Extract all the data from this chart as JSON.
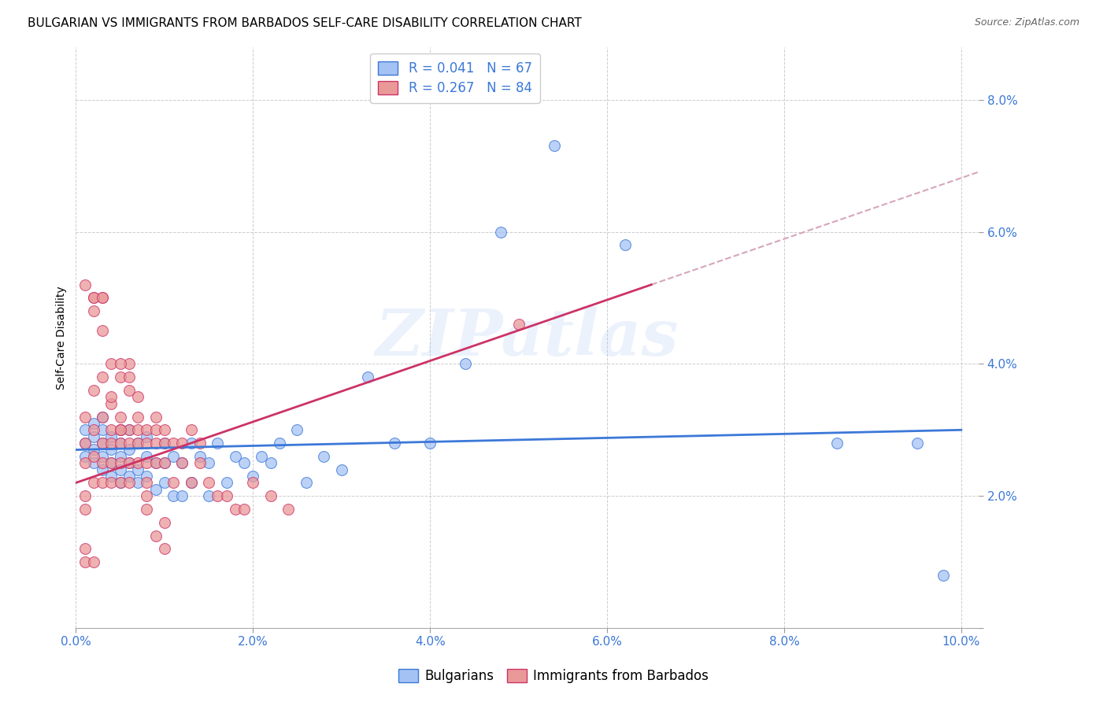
{
  "title": "BULGARIAN VS IMMIGRANTS FROM BARBADOS SELF-CARE DISABILITY CORRELATION CHART",
  "source": "Source: ZipAtlas.com",
  "ylabel": "Self-Care Disability",
  "xlim": [
    0.0,
    0.102
  ],
  "ylim": [
    0.0,
    0.088
  ],
  "xticks": [
    0.0,
    0.02,
    0.04,
    0.06,
    0.08,
    0.1
  ],
  "yticks": [
    0.0,
    0.02,
    0.04,
    0.06,
    0.08
  ],
  "blue_color": "#a4c2f4",
  "pink_color": "#ea9999",
  "blue_line_color": "#3c78d8",
  "pink_line_color": "#cc3366",
  "pink_dash_color": "#d5a6bd",
  "tick_color": "#3c78d8",
  "watermark_color": "#a4c2f4",
  "watermark": "ZIPatlas",
  "legend_R_blue": "R = 0.041",
  "legend_N_blue": "N = 67",
  "legend_R_pink": "R = 0.267",
  "legend_N_pink": "N = 84",
  "title_fontsize": 11,
  "axis_label_fontsize": 10,
  "tick_fontsize": 11,
  "legend_fontsize": 12,
  "blue_scatter_x": [
    0.001,
    0.001,
    0.001,
    0.002,
    0.002,
    0.002,
    0.002,
    0.003,
    0.003,
    0.003,
    0.003,
    0.003,
    0.004,
    0.004,
    0.004,
    0.004,
    0.005,
    0.005,
    0.005,
    0.005,
    0.005,
    0.006,
    0.006,
    0.006,
    0.006,
    0.007,
    0.007,
    0.007,
    0.008,
    0.008,
    0.008,
    0.009,
    0.009,
    0.01,
    0.01,
    0.01,
    0.011,
    0.011,
    0.012,
    0.012,
    0.013,
    0.013,
    0.014,
    0.015,
    0.015,
    0.016,
    0.017,
    0.018,
    0.019,
    0.02,
    0.021,
    0.022,
    0.023,
    0.025,
    0.026,
    0.028,
    0.03,
    0.033,
    0.036,
    0.04,
    0.044,
    0.048,
    0.054,
    0.062,
    0.086,
    0.095,
    0.098
  ],
  "blue_scatter_y": [
    0.026,
    0.028,
    0.03,
    0.025,
    0.027,
    0.029,
    0.031,
    0.024,
    0.026,
    0.028,
    0.03,
    0.032,
    0.023,
    0.025,
    0.027,
    0.029,
    0.022,
    0.024,
    0.026,
    0.028,
    0.03,
    0.023,
    0.025,
    0.027,
    0.03,
    0.022,
    0.024,
    0.028,
    0.023,
    0.026,
    0.029,
    0.021,
    0.025,
    0.022,
    0.025,
    0.028,
    0.02,
    0.026,
    0.02,
    0.025,
    0.022,
    0.028,
    0.026,
    0.02,
    0.025,
    0.028,
    0.022,
    0.026,
    0.025,
    0.023,
    0.026,
    0.025,
    0.028,
    0.03,
    0.022,
    0.026,
    0.024,
    0.038,
    0.028,
    0.028,
    0.04,
    0.06,
    0.073,
    0.058,
    0.028,
    0.028,
    0.008
  ],
  "pink_scatter_x": [
    0.001,
    0.001,
    0.001,
    0.001,
    0.002,
    0.002,
    0.002,
    0.002,
    0.002,
    0.003,
    0.003,
    0.003,
    0.003,
    0.003,
    0.003,
    0.004,
    0.004,
    0.004,
    0.004,
    0.004,
    0.005,
    0.005,
    0.005,
    0.005,
    0.005,
    0.005,
    0.006,
    0.006,
    0.006,
    0.006,
    0.006,
    0.006,
    0.007,
    0.007,
    0.007,
    0.007,
    0.008,
    0.008,
    0.008,
    0.008,
    0.009,
    0.009,
    0.009,
    0.009,
    0.01,
    0.01,
    0.01,
    0.011,
    0.011,
    0.012,
    0.012,
    0.013,
    0.013,
    0.014,
    0.014,
    0.015,
    0.016,
    0.017,
    0.018,
    0.019,
    0.02,
    0.022,
    0.024,
    0.002,
    0.003,
    0.004,
    0.005,
    0.006,
    0.007,
    0.008,
    0.009,
    0.01,
    0.002,
    0.003,
    0.004,
    0.005,
    0.001,
    0.001,
    0.002,
    0.008,
    0.01,
    0.05,
    0.001,
    0.001
  ],
  "pink_scatter_y": [
    0.028,
    0.032,
    0.025,
    0.018,
    0.03,
    0.026,
    0.022,
    0.036,
    0.05,
    0.032,
    0.028,
    0.025,
    0.022,
    0.038,
    0.05,
    0.03,
    0.028,
    0.025,
    0.022,
    0.034,
    0.03,
    0.028,
    0.025,
    0.022,
    0.032,
    0.038,
    0.03,
    0.028,
    0.025,
    0.022,
    0.036,
    0.04,
    0.03,
    0.028,
    0.025,
    0.032,
    0.03,
    0.028,
    0.025,
    0.022,
    0.03,
    0.028,
    0.025,
    0.032,
    0.028,
    0.025,
    0.03,
    0.028,
    0.022,
    0.028,
    0.025,
    0.03,
    0.022,
    0.028,
    0.025,
    0.022,
    0.02,
    0.02,
    0.018,
    0.018,
    0.022,
    0.02,
    0.018,
    0.05,
    0.05,
    0.04,
    0.04,
    0.038,
    0.035,
    0.018,
    0.014,
    0.012,
    0.048,
    0.045,
    0.035,
    0.03,
    0.012,
    0.01,
    0.01,
    0.02,
    0.016,
    0.046,
    0.052,
    0.02
  ]
}
